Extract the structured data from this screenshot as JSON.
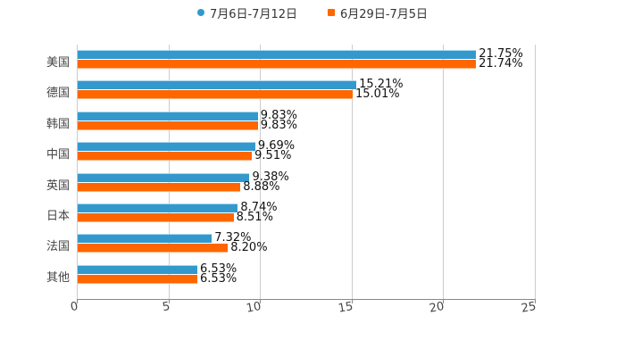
{
  "chart_data": {
    "type": "bar",
    "orientation": "horizontal",
    "title": "",
    "xlabel": "",
    "ylabel": "",
    "categories": [
      "美国",
      "德国",
      "韩国",
      "中国",
      "英国",
      "日本",
      "法国",
      "其他"
    ],
    "series": [
      {
        "name": "7月6日-7月12日",
        "color": "#3399cc",
        "values": [
          21.75,
          15.21,
          9.83,
          9.69,
          9.38,
          8.74,
          7.32,
          6.53
        ],
        "labels": [
          "21.75%",
          "15.21%",
          "9.83%",
          "9.69%",
          "9.38%",
          "8.74%",
          "7.32%",
          "6.53%"
        ]
      },
      {
        "name": "6月29日-7月5日",
        "color": "#ff6600",
        "values": [
          21.74,
          15.01,
          9.83,
          9.51,
          8.88,
          8.51,
          8.2,
          6.53
        ],
        "labels": [
          "21.74%",
          "15.01%",
          "9.83%",
          "9.51%",
          "8.88%",
          "8.51%",
          "8.20%",
          "6.53%"
        ]
      }
    ],
    "xlim": [
      0,
      25
    ],
    "xticks": [
      "0",
      "5",
      "10",
      "15",
      "20",
      "25"
    ],
    "grid": true,
    "legend_position": "top"
  },
  "legend": {
    "items": [
      {
        "label": "7月6日-7月12日",
        "color": "#3399cc",
        "shape": "circle"
      },
      {
        "label": "6月29日-7月5日",
        "color": "#ff6600",
        "shape": "square"
      }
    ]
  }
}
